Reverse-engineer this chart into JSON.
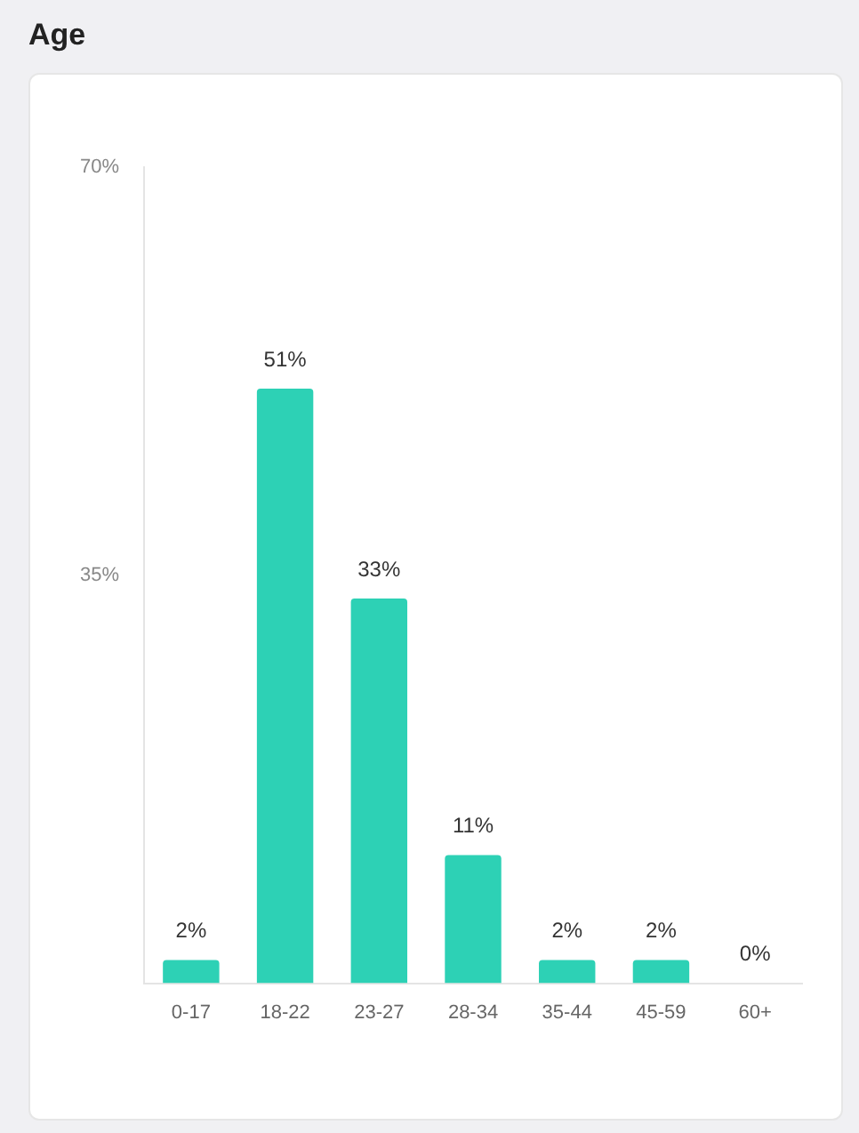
{
  "chart_data": {
    "type": "bar",
    "title": "Age",
    "categories": [
      "0-17",
      "18-22",
      "23-27",
      "28-34",
      "35-44",
      "45-59",
      "60+"
    ],
    "values": [
      2,
      51,
      33,
      11,
      2,
      2,
      0
    ],
    "value_labels": [
      "2%",
      "51%",
      "33%",
      "11%",
      "2%",
      "2%",
      "0%"
    ],
    "color": "#2dd1b5",
    "ylim": [
      0,
      70
    ],
    "yticks": [
      {
        "value": 0,
        "label": null
      },
      {
        "value": 35,
        "label": "35%"
      },
      {
        "value": 70,
        "label": "70%"
      }
    ],
    "grid": false,
    "legend": false
  }
}
